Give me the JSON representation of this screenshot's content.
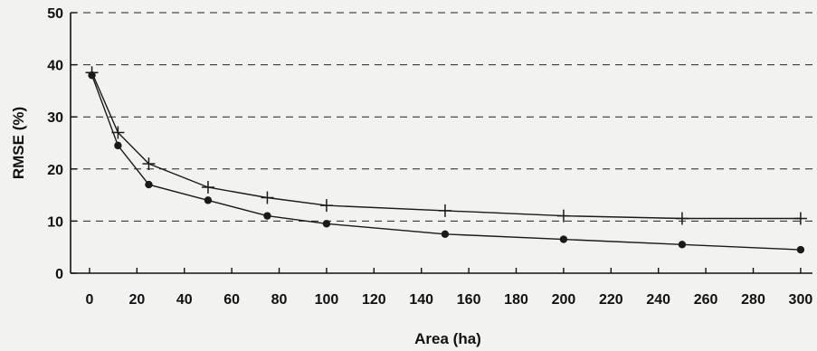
{
  "chart_data": {
    "type": "line",
    "title": "",
    "xlabel": "Area (ha)",
    "ylabel": "RMSE (%)",
    "xlim": [
      -8,
      305
    ],
    "ylim": [
      0,
      50
    ],
    "x_ticks": [
      0,
      20,
      40,
      60,
      80,
      100,
      120,
      140,
      160,
      180,
      200,
      220,
      240,
      260,
      280,
      300
    ],
    "y_ticks": [
      0,
      10,
      20,
      30,
      40,
      50
    ],
    "grid": "horizontal dashed",
    "series": [
      {
        "marker": "plus",
        "x": [
          1,
          12,
          25,
          50,
          75,
          100,
          150,
          200,
          250,
          300
        ],
        "y": [
          38.5,
          27,
          21,
          16.5,
          14.5,
          13,
          12,
          11,
          10.5,
          10.5
        ]
      },
      {
        "marker": "circle",
        "x": [
          1,
          12,
          25,
          50,
          75,
          100,
          150,
          200,
          250,
          300
        ],
        "y": [
          38,
          24.5,
          17,
          14,
          11,
          9.5,
          7.5,
          6.5,
          5.5,
          4.5
        ]
      }
    ]
  }
}
